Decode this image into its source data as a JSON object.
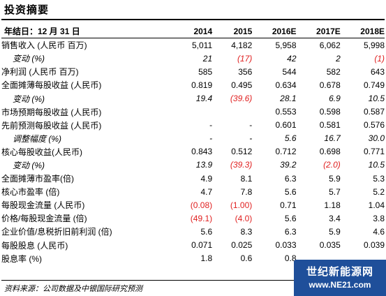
{
  "title": "投资摘要",
  "header": {
    "label": "年结日：12 月 31 日",
    "years": [
      "2014",
      "2015",
      "2016E",
      "2017E",
      "2018E"
    ]
  },
  "rows": [
    {
      "label": "销售收入 (人民币 百万)",
      "values": [
        "5,011",
        "4,182",
        "5,958",
        "6,062",
        "5,998"
      ],
      "sub": false
    },
    {
      "label": "变动 (%)",
      "values": [
        "21",
        "(17)",
        "42",
        "2",
        "(1)"
      ],
      "sub": true
    },
    {
      "label": "净利润 (人民币 百万)",
      "values": [
        "585",
        "356",
        "544",
        "582",
        "643"
      ],
      "sub": false
    },
    {
      "label": "全面摊薄每股收益 (人民币)",
      "values": [
        "0.819",
        "0.495",
        "0.634",
        "0.678",
        "0.749"
      ],
      "sub": false
    },
    {
      "label": "变动 (%)",
      "values": [
        "19.4",
        "(39.6)",
        "28.1",
        "6.9",
        "10.5"
      ],
      "sub": true
    },
    {
      "label": "市场预期每股收益 (人民币)",
      "values": [
        "",
        "",
        "0.553",
        "0.598",
        "0.587"
      ],
      "sub": false
    },
    {
      "label": "先前预测每股收益 (人民币)",
      "values": [
        "-",
        "-",
        "0.601",
        "0.581",
        "0.576"
      ],
      "sub": false
    },
    {
      "label": "调整幅度 (%)",
      "values": [
        "-",
        "-",
        "5.6",
        "16.7",
        "30.0"
      ],
      "sub": true
    },
    {
      "label": "核心每股收益(人民币)",
      "values": [
        "0.843",
        "0.512",
        "0.712",
        "0.698",
        "0.771"
      ],
      "sub": false
    },
    {
      "label": "变动 (%)",
      "values": [
        "13.9",
        "(39.3)",
        "39.2",
        "(2.0)",
        "10.5"
      ],
      "sub": true
    },
    {
      "label": "全面摊薄市盈率(倍)",
      "values": [
        "4.9",
        "8.1",
        "6.3",
        "5.9",
        "5.3"
      ],
      "sub": false
    },
    {
      "label": "核心市盈率 (倍)",
      "values": [
        "4.7",
        "7.8",
        "5.6",
        "5.7",
        "5.2"
      ],
      "sub": false
    },
    {
      "label": "每股现金流量 (人民币)",
      "values": [
        "(0.08)",
        "(1.00)",
        "0.71",
        "1.18",
        "1.04"
      ],
      "sub": false
    },
    {
      "label": "价格/每股现金流量 (倍)",
      "values": [
        "(49.1)",
        "(4.0)",
        "5.6",
        "3.4",
        "3.8"
      ],
      "sub": false
    },
    {
      "label": "企业价值/息税折旧前利润 (倍)",
      "values": [
        "5.6",
        "8.3",
        "6.3",
        "5.9",
        "4.6"
      ],
      "sub": false
    },
    {
      "label": "每股股息 (人民币)",
      "values": [
        "0.071",
        "0.025",
        "0.033",
        "0.035",
        "0.039"
      ],
      "sub": false
    },
    {
      "label": "股息率 (%)",
      "values": [
        "1.8",
        "0.6",
        "0.8",
        "",
        ""
      ],
      "sub": false
    }
  ],
  "source": "资料来源：公司数据及中银国际研究预测",
  "watermark": {
    "main": "世纪新能源网",
    "url": "www.NE21.com"
  },
  "colors": {
    "negative": "#e02020",
    "watermark_bg": "#1f4f9a"
  }
}
